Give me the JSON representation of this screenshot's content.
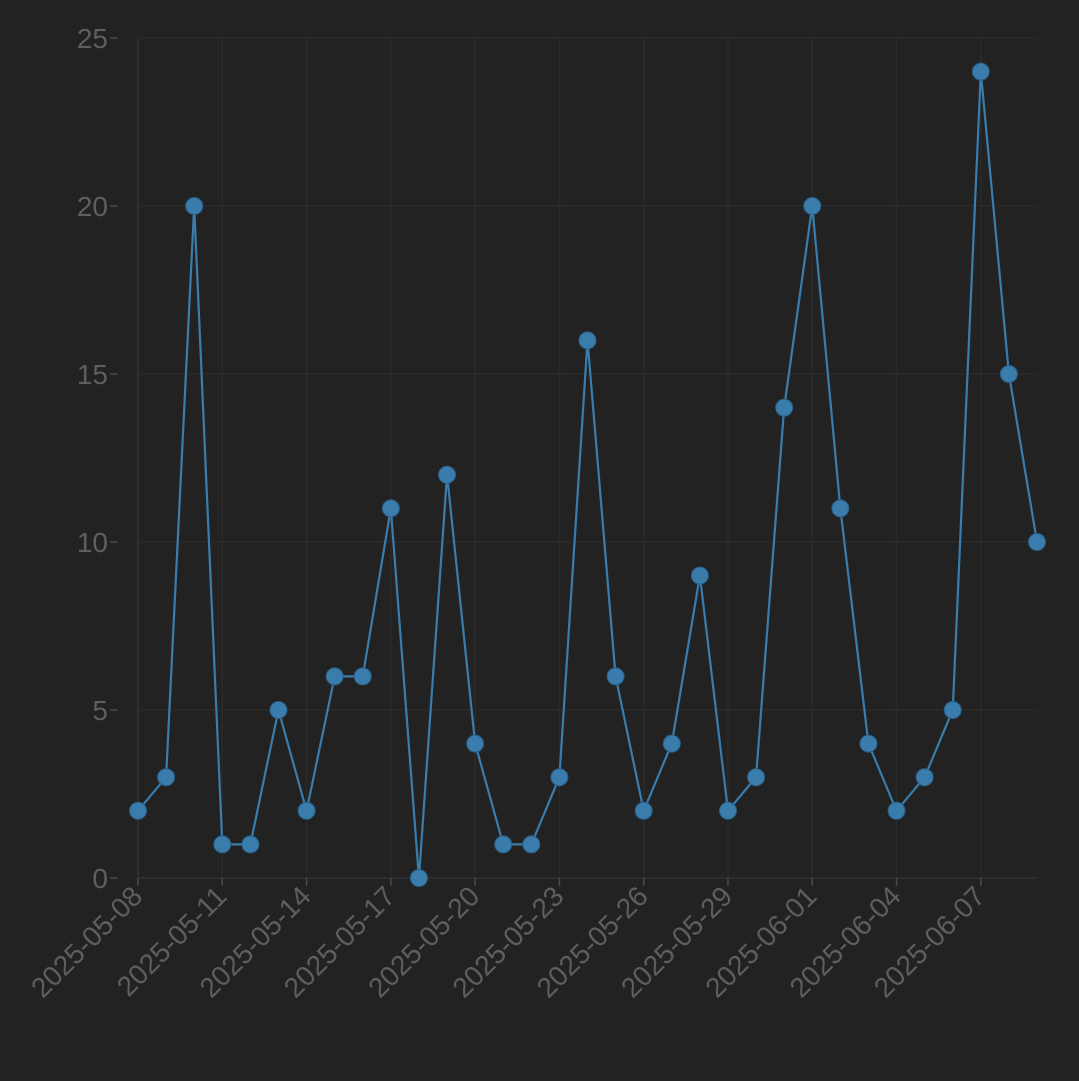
{
  "chart_data": {
    "type": "line",
    "title": "",
    "xlabel": "",
    "ylabel": "",
    "grid": true,
    "legend": "none",
    "ylim": [
      0,
      25
    ],
    "xlim": [
      "2025-05-08",
      "2025-06-09"
    ],
    "colors": {
      "series": "#3a7cac",
      "background": "#222222",
      "tick_text": "#5e5e5e"
    },
    "y_ticks": [
      "0",
      "5",
      "10",
      "15",
      "20",
      "25"
    ],
    "x_ticks": [
      "2025-05-08",
      "2025-05-11",
      "2025-05-14",
      "2025-05-17",
      "2025-05-20",
      "2025-05-23",
      "2025-05-26",
      "2025-05-29",
      "2025-06-01",
      "2025-06-04",
      "2025-06-07"
    ],
    "x": [
      "2025-05-08",
      "2025-05-09",
      "2025-05-10",
      "2025-05-11",
      "2025-05-12",
      "2025-05-13",
      "2025-05-14",
      "2025-05-15",
      "2025-05-16",
      "2025-05-17",
      "2025-05-18",
      "2025-05-19",
      "2025-05-20",
      "2025-05-21",
      "2025-05-22",
      "2025-05-23",
      "2025-05-24",
      "2025-05-25",
      "2025-05-26",
      "2025-05-27",
      "2025-05-28",
      "2025-05-29",
      "2025-05-30",
      "2025-05-31",
      "2025-06-01",
      "2025-06-02",
      "2025-06-03",
      "2025-06-04",
      "2025-06-05",
      "2025-06-06",
      "2025-06-07",
      "2025-06-08",
      "2025-06-09"
    ],
    "series": [
      {
        "values": [
          2,
          3,
          20,
          1,
          1,
          5,
          2,
          6,
          6,
          11,
          0,
          12,
          4,
          1,
          1,
          3,
          16,
          6,
          2,
          4,
          9,
          2,
          3,
          14,
          20,
          11,
          4,
          2,
          3,
          5,
          24,
          15,
          10
        ]
      }
    ]
  }
}
